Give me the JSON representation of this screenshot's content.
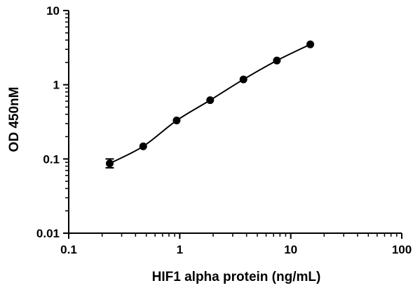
{
  "chart_data": {
    "type": "scatter",
    "title": "",
    "xlabel": "HIF1 alpha protein (ng/mL)",
    "ylabel": "OD 450nM",
    "x_scale": "log",
    "y_scale": "log",
    "xlim": [
      0.1,
      100
    ],
    "ylim": [
      0.01,
      10
    ],
    "x_ticks": [
      0.1,
      1,
      10,
      100
    ],
    "x_tick_labels": [
      "0.1",
      "1",
      "10",
      "100"
    ],
    "y_ticks": [
      0.01,
      0.1,
      1,
      10
    ],
    "y_tick_labels": [
      "0.01",
      "0.1",
      "1",
      "10"
    ],
    "grid": false,
    "legend": "none",
    "series": [
      {
        "points": [
          {
            "x": 0.234,
            "y": 0.087,
            "err_low": 0.076,
            "err_high": 0.1
          },
          {
            "x": 0.469,
            "y": 0.148
          },
          {
            "x": 0.938,
            "y": 0.33
          },
          {
            "x": 1.88,
            "y": 0.62
          },
          {
            "x": 3.75,
            "y": 1.18
          },
          {
            "x": 7.5,
            "y": 2.12
          },
          {
            "x": 15,
            "y": 3.5
          }
        ],
        "fit_curve": true,
        "color": "#000000"
      }
    ]
  }
}
